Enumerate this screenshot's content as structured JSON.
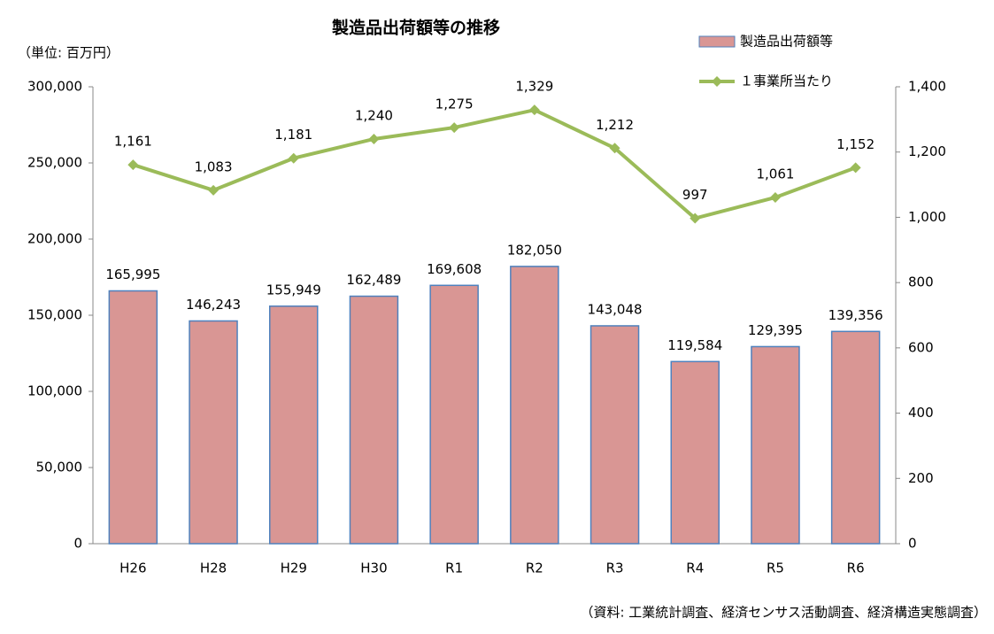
{
  "chart_data": {
    "type": "combo",
    "title": "製造品出荷額等の推移",
    "unit_label": "（単位: 百万円）",
    "source": "（資料: 工業統計調査、経済センサス活動調査、経済構造実態調査）",
    "categories": [
      "H26",
      "H28",
      "H29",
      "H30",
      "R1",
      "R2",
      "R3",
      "R4",
      "R5",
      "R6"
    ],
    "series": [
      {
        "name": "製造品出荷額等",
        "type": "bar",
        "color": "#d99694",
        "border": "#4f81bd",
        "values": [
          165995,
          146243,
          155949,
          162489,
          169608,
          182050,
          143048,
          119584,
          129395,
          139356
        ],
        "value_labels": [
          "165,995",
          "146,243",
          "155,949",
          "162,489",
          "169,608",
          "182,050",
          "143,048",
          "119,584",
          "129,395",
          "139,356"
        ]
      },
      {
        "name": "１事業所当たり",
        "type": "line",
        "axis": "y2",
        "color": "#9bbb59",
        "values": [
          1161,
          1083,
          1181,
          1240,
          1275,
          1329,
          1212,
          997,
          1061,
          1152
        ],
        "value_labels": [
          "1,161",
          "1,083",
          "1,181",
          "1,240",
          "1,275",
          "1,329",
          "1,212",
          "997",
          "1,061",
          "1,152"
        ]
      }
    ],
    "ylim": [
      0,
      300000
    ],
    "yticks": [
      0,
      {
        "value": 50000,
        "label": "50,000"
      },
      {
        "value": 100000,
        "label": "100,000"
      },
      {
        "value": 150000,
        "label": "150,000"
      },
      {
        "value": 200000,
        "label": "200,000"
      },
      {
        "value": 250000,
        "label": "250,000"
      },
      {
        "value": 300000,
        "label": "300,000"
      }
    ],
    "y2lim": [
      0,
      1400
    ],
    "y2ticks": [
      0,
      200,
      400,
      600,
      800,
      {
        "value": 1000,
        "label": "1,000"
      },
      {
        "value": 1200,
        "label": "1,200"
      },
      {
        "value": 1400,
        "label": "1,400"
      }
    ],
    "grid": false,
    "legend": "top-right"
  }
}
